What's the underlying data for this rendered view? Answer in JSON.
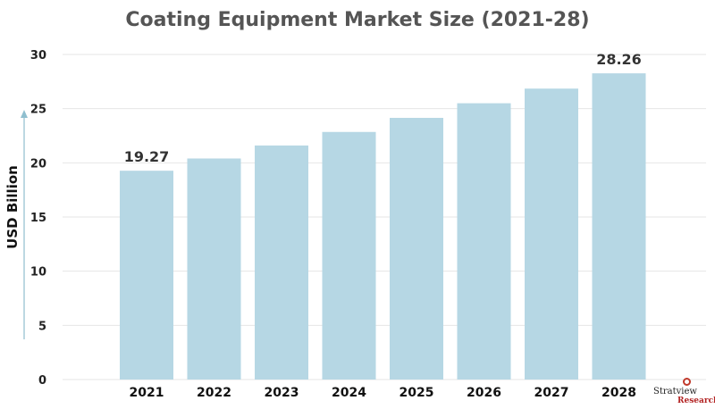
{
  "chart_data": {
    "type": "bar",
    "title": "Coating Equipment Market Size (2021-28)",
    "xlabel": "",
    "ylabel": "USD Billion",
    "categories": [
      "2021",
      "2022",
      "2023",
      "2024",
      "2025",
      "2026",
      "2027",
      "2028"
    ],
    "values": [
      19.27,
      20.4,
      21.6,
      22.85,
      24.15,
      25.5,
      26.85,
      28.26
    ],
    "data_labels": [
      {
        "index": 0,
        "text": "19.27"
      },
      {
        "index": 7,
        "text": "28.26"
      }
    ],
    "ylim": [
      0,
      30
    ],
    "yticks": [
      "0",
      "5",
      "10",
      "15",
      "20",
      "25",
      "30"
    ],
    "grid": true,
    "legend": "none",
    "colors": {
      "bar": "#b6d7e4",
      "grid": "#e6e6e6",
      "axis_arrow": "#8fbfcf",
      "title": "#555555",
      "text": "#111111"
    }
  },
  "branding": {
    "logo_text": "Stratview",
    "logo_subtext": "Research"
  }
}
